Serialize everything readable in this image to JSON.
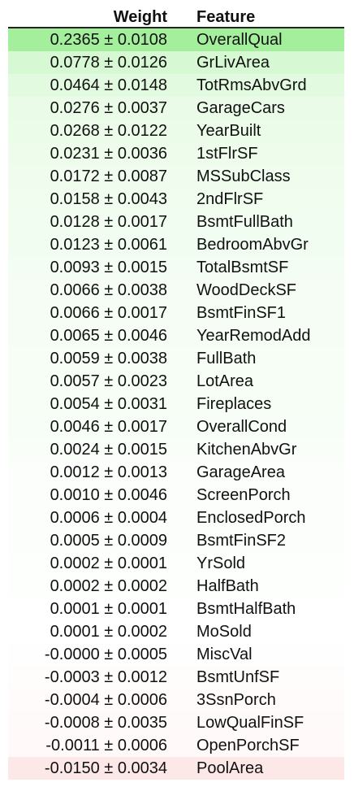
{
  "header": {
    "weight_label": "Weight",
    "feature_label": "Feature"
  },
  "rows": [
    {
      "weight": "0.2365 ± 0.0108",
      "feature": "OverallQual",
      "bg": "#a3ef9c"
    },
    {
      "weight": "0.0778 ± 0.0126",
      "feature": "GrLivArea",
      "bg": "#d6f8d2"
    },
    {
      "weight": "0.0464 ± 0.0148",
      "feature": "TotRmsAbvGrd",
      "bg": "#e2fadf"
    },
    {
      "weight": "0.0276 ± 0.0037",
      "feature": "GarageCars",
      "bg": "#eafbe8"
    },
    {
      "weight": "0.0268 ± 0.0122",
      "feature": "YearBuilt",
      "bg": "#ebfce9"
    },
    {
      "weight": "0.0231 ± 0.0036",
      "feature": "1stFlrSF",
      "bg": "#edfceb"
    },
    {
      "weight": "0.0172 ± 0.0087",
      "feature": "MSSubClass",
      "bg": "#effcee"
    },
    {
      "weight": "0.0158 ± 0.0043",
      "feature": "2ndFlrSF",
      "bg": "#f0fdef"
    },
    {
      "weight": "0.0128 ± 0.0017",
      "feature": "BsmtFullBath",
      "bg": "#f2fdf1"
    },
    {
      "weight": "0.0123 ± 0.0061",
      "feature": "BedroomAbvGr",
      "bg": "#f2fdf1"
    },
    {
      "weight": "0.0093 ± 0.0015",
      "feature": "TotalBsmtSF",
      "bg": "#f4fdf3"
    },
    {
      "weight": "0.0066 ± 0.0038",
      "feature": "WoodDeckSF",
      "bg": "#f6fdf5"
    },
    {
      "weight": "0.0066 ± 0.0017",
      "feature": "BsmtFinSF1",
      "bg": "#f6fdf5"
    },
    {
      "weight": "0.0065 ± 0.0046",
      "feature": "YearRemodAdd",
      "bg": "#f6fdf5"
    },
    {
      "weight": "0.0059 ± 0.0038",
      "feature": "FullBath",
      "bg": "#f6fef5"
    },
    {
      "weight": "0.0057 ± 0.0023",
      "feature": "LotArea",
      "bg": "#f6fef6"
    },
    {
      "weight": "0.0054 ± 0.0031",
      "feature": "Fireplaces",
      "bg": "#f7fef6"
    },
    {
      "weight": "0.0046 ± 0.0017",
      "feature": "OverallCond",
      "bg": "#f7fef7"
    },
    {
      "weight": "0.0024 ± 0.0015",
      "feature": "KitchenAbvGr",
      "bg": "#f9fef9"
    },
    {
      "weight": "0.0012 ± 0.0013",
      "feature": "GarageArea",
      "bg": "#fbfefb"
    },
    {
      "weight": "0.0010 ± 0.0046",
      "feature": "ScreenPorch",
      "bg": "#fbfefb"
    },
    {
      "weight": "0.0006 ± 0.0004",
      "feature": "EnclosedPorch",
      "bg": "#fcfefc"
    },
    {
      "weight": "0.0005 ± 0.0009",
      "feature": "BsmtFinSF2",
      "bg": "#fcfefc"
    },
    {
      "weight": "0.0002 ± 0.0001",
      "feature": "YrSold",
      "bg": "#fdfffd"
    },
    {
      "weight": "0.0002 ± 0.0002",
      "feature": "HalfBath",
      "bg": "#fdfffd"
    },
    {
      "weight": "0.0001 ± 0.0001",
      "feature": "BsmtHalfBath",
      "bg": "#fefffe"
    },
    {
      "weight": "0.0001 ± 0.0002",
      "feature": "MoSold",
      "bg": "#fefffe"
    },
    {
      "weight": "-0.0000 ± 0.0005",
      "feature": "MiscVal",
      "bg": "#fffefe"
    },
    {
      "weight": "-0.0003 ± 0.0012",
      "feature": "BsmtUnfSF",
      "bg": "#fffcfc"
    },
    {
      "weight": "-0.0004 ± 0.0006",
      "feature": "3SsnPorch",
      "bg": "#fffbfb"
    },
    {
      "weight": "-0.0008 ± 0.0035",
      "feature": "LowQualFinSF",
      "bg": "#fffafa"
    },
    {
      "weight": "-0.0011 ± 0.0006",
      "feature": "OpenPorchSF",
      "bg": "#fff9f9"
    },
    {
      "weight": "-0.0150 ± 0.0034",
      "feature": "PoolArea",
      "bg": "#fde8e8"
    }
  ]
}
